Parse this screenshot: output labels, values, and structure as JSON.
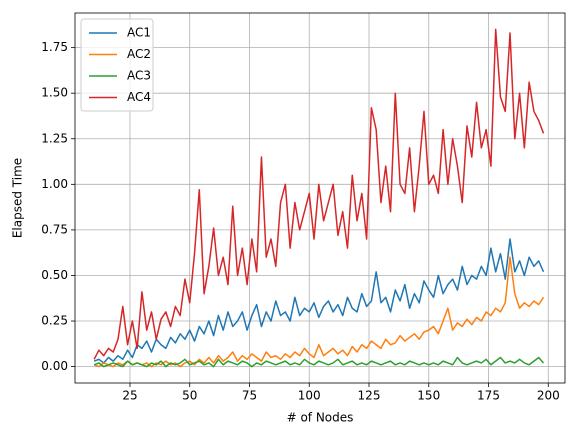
{
  "chart_data": {
    "type": "line",
    "xlabel": "# of Nodes",
    "ylabel": "Elapsed Time",
    "x": [
      10,
      12,
      14,
      16,
      18,
      20,
      22,
      24,
      26,
      28,
      30,
      32,
      34,
      36,
      38,
      40,
      42,
      44,
      46,
      48,
      50,
      52,
      54,
      56,
      58,
      60,
      62,
      64,
      66,
      68,
      70,
      72,
      74,
      76,
      78,
      80,
      82,
      84,
      86,
      88,
      90,
      92,
      94,
      96,
      98,
      100,
      102,
      104,
      106,
      108,
      110,
      112,
      114,
      116,
      118,
      120,
      122,
      124,
      126,
      128,
      130,
      132,
      134,
      136,
      138,
      140,
      142,
      144,
      146,
      148,
      150,
      152,
      154,
      156,
      158,
      160,
      162,
      164,
      166,
      168,
      170,
      172,
      174,
      176,
      178,
      180,
      182,
      184,
      186,
      188,
      190,
      192,
      194,
      196,
      198
    ],
    "series": [
      {
        "name": "AC1",
        "color": "#1f77b4",
        "values": [
          0.03,
          0.04,
          0.02,
          0.05,
          0.03,
          0.06,
          0.04,
          0.09,
          0.05,
          0.12,
          0.1,
          0.14,
          0.08,
          0.15,
          0.12,
          0.1,
          0.16,
          0.13,
          0.18,
          0.15,
          0.2,
          0.14,
          0.22,
          0.18,
          0.25,
          0.17,
          0.28,
          0.2,
          0.3,
          0.22,
          0.25,
          0.3,
          0.2,
          0.28,
          0.34,
          0.22,
          0.3,
          0.25,
          0.36,
          0.28,
          0.3,
          0.25,
          0.38,
          0.28,
          0.32,
          0.3,
          0.35,
          0.27,
          0.33,
          0.36,
          0.3,
          0.34,
          0.28,
          0.38,
          0.32,
          0.3,
          0.4,
          0.33,
          0.36,
          0.52,
          0.35,
          0.38,
          0.3,
          0.42,
          0.36,
          0.45,
          0.32,
          0.4,
          0.35,
          0.47,
          0.42,
          0.38,
          0.5,
          0.4,
          0.45,
          0.48,
          0.42,
          0.55,
          0.45,
          0.5,
          0.48,
          0.55,
          0.5,
          0.65,
          0.52,
          0.62,
          0.48,
          0.7,
          0.52,
          0.58,
          0.5,
          0.6,
          0.55,
          0.58,
          0.52
        ]
      },
      {
        "name": "AC2",
        "color": "#ff7f0e",
        "values": [
          0.01,
          0.0,
          0.02,
          0.01,
          0.0,
          0.02,
          0.01,
          0.03,
          0.01,
          0.02,
          0.01,
          0.02,
          0.0,
          0.02,
          0.01,
          0.03,
          0.01,
          0.02,
          0.0,
          0.02,
          0.03,
          0.01,
          0.04,
          0.02,
          0.05,
          0.02,
          0.06,
          0.03,
          0.05,
          0.08,
          0.03,
          0.06,
          0.04,
          0.07,
          0.05,
          0.03,
          0.08,
          0.05,
          0.06,
          0.04,
          0.07,
          0.05,
          0.08,
          0.06,
          0.1,
          0.07,
          0.05,
          0.12,
          0.06,
          0.08,
          0.1,
          0.07,
          0.09,
          0.06,
          0.11,
          0.08,
          0.12,
          0.1,
          0.14,
          0.12,
          0.1,
          0.15,
          0.12,
          0.13,
          0.17,
          0.14,
          0.16,
          0.18,
          0.15,
          0.19,
          0.2,
          0.22,
          0.18,
          0.25,
          0.32,
          0.2,
          0.24,
          0.22,
          0.26,
          0.23,
          0.27,
          0.25,
          0.3,
          0.28,
          0.32,
          0.3,
          0.35,
          0.6,
          0.4,
          0.32,
          0.35,
          0.33,
          0.36,
          0.34,
          0.38
        ]
      },
      {
        "name": "AC3",
        "color": "#2ca02c",
        "values": [
          0.01,
          0.02,
          0.0,
          0.01,
          0.02,
          0.01,
          0.0,
          0.03,
          0.01,
          0.02,
          0.01,
          0.0,
          0.02,
          0.01,
          0.03,
          0.0,
          0.02,
          0.01,
          0.02,
          0.04,
          0.01,
          0.02,
          0.03,
          0.01,
          0.02,
          0.0,
          0.04,
          0.01,
          0.03,
          0.02,
          0.01,
          0.03,
          0.02,
          0.0,
          0.02,
          0.01,
          0.03,
          0.02,
          0.01,
          0.02,
          0.03,
          0.01,
          0.02,
          0.01,
          0.04,
          0.02,
          0.01,
          0.03,
          0.02,
          0.01,
          0.02,
          0.04,
          0.01,
          0.02,
          0.03,
          0.01,
          0.02,
          0.01,
          0.03,
          0.02,
          0.01,
          0.02,
          0.03,
          0.01,
          0.02,
          0.01,
          0.03,
          0.02,
          0.01,
          0.02,
          0.01,
          0.02,
          0.01,
          0.03,
          0.02,
          0.01,
          0.05,
          0.02,
          0.01,
          0.02,
          0.03,
          0.02,
          0.04,
          0.01,
          0.03,
          0.05,
          0.02,
          0.03,
          0.02,
          0.04,
          0.02,
          0.01,
          0.03,
          0.05,
          0.02
        ]
      },
      {
        "name": "AC4",
        "color": "#d62728",
        "values": [
          0.04,
          0.09,
          0.06,
          0.1,
          0.08,
          0.15,
          0.33,
          0.12,
          0.25,
          0.1,
          0.41,
          0.2,
          0.3,
          0.15,
          0.26,
          0.3,
          0.22,
          0.33,
          0.28,
          0.48,
          0.35,
          0.62,
          0.97,
          0.4,
          0.55,
          0.76,
          0.5,
          0.6,
          0.45,
          0.88,
          0.5,
          0.65,
          0.45,
          0.7,
          0.52,
          1.15,
          0.6,
          0.7,
          0.55,
          0.9,
          1.0,
          0.65,
          0.9,
          0.75,
          0.85,
          0.95,
          0.7,
          1.0,
          0.8,
          0.9,
          1.0,
          0.72,
          0.85,
          0.65,
          1.05,
          0.8,
          0.95,
          0.7,
          1.42,
          1.3,
          0.9,
          1.1,
          0.85,
          1.5,
          1.0,
          0.95,
          1.2,
          0.85,
          1.1,
          1.4,
          1.0,
          1.05,
          0.95,
          1.3,
          1.0,
          1.25,
          1.1,
          0.9,
          1.32,
          1.15,
          1.45,
          1.2,
          1.3,
          1.1,
          1.85,
          1.48,
          1.4,
          1.83,
          1.25,
          1.5,
          1.2,
          1.56,
          1.4,
          1.35,
          1.28
        ]
      }
    ],
    "xlim": [
      2,
      207
    ],
    "xticks": [
      25,
      50,
      75,
      100,
      125,
      150,
      175,
      200
    ],
    "ylim": [
      -0.09,
      1.94
    ],
    "yticks": [
      {
        "value": 0,
        "label": "0.00"
      },
      {
        "value": 0.25,
        "label": "0.25"
      },
      {
        "value": 0.5,
        "label": "0.50"
      },
      {
        "value": 0.75,
        "label": "0.75"
      },
      {
        "value": 1,
        "label": "1.00"
      },
      {
        "value": 1.25,
        "label": "1.25"
      },
      {
        "value": 1.5,
        "label": "1.50"
      },
      {
        "value": 1.75,
        "label": "1.75"
      }
    ],
    "grid": true,
    "legend": "upper left"
  }
}
